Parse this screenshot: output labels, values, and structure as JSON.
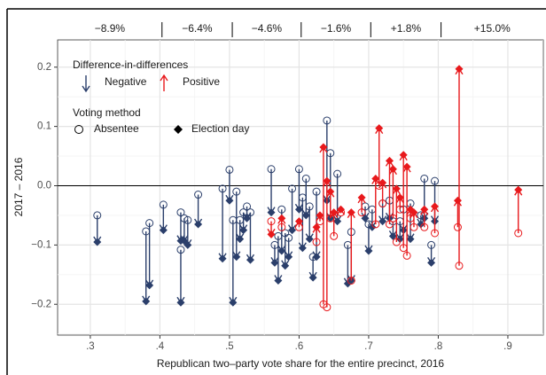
{
  "chart_data": {
    "type": "arrow-scatter",
    "x_label": "Republican two–party vote share for the entire precinct, 2016",
    "y_label": "2017 – 2016",
    "xlim": [
      0.253,
      0.951
    ],
    "ylim": [
      -0.252,
      0.246
    ],
    "xticks": [
      {
        "value": 0.3,
        "label": ".3"
      },
      {
        "value": 0.4,
        "label": ".4"
      },
      {
        "value": 0.5,
        "label": ".5"
      },
      {
        "value": 0.6,
        "label": ".6"
      },
      {
        "value": 0.7,
        "label": ".7"
      },
      {
        "value": 0.8,
        "label": ".8"
      },
      {
        "value": 0.9,
        "label": ".9"
      }
    ],
    "yticks": [
      {
        "value": -0.2,
        "label": "−0.2"
      },
      {
        "value": -0.1,
        "label": "−0.1"
      },
      {
        "value": 0,
        "label": "0.0"
      },
      {
        "value": 0.1,
        "label": "0.1"
      },
      {
        "value": 0.2,
        "label": "0.2"
      }
    ],
    "x_minor_grid": [
      0.25,
      0.35,
      0.45,
      0.55,
      0.65,
      0.75,
      0.85,
      0.95
    ],
    "y_minor_grid": [
      -0.25,
      -0.15,
      -0.05,
      0.05,
      0.15
    ],
    "grid": true,
    "bin_edges": [
      0.403,
      0.504,
      0.603,
      0.703,
      0.804
    ],
    "bin_labels": [
      "−8.9%",
      "−6.4%",
      "−4.6%",
      "−1.6%",
      "+1.8%",
      "+15.0%"
    ],
    "legend": {
      "arrow_title": "Difference-in-differences",
      "method_title": "Voting method",
      "absentee": "Absentee",
      "election_day": "Election day"
    },
    "series": [
      {
        "name": "Negative",
        "color": "#2b3f6b",
        "x": [
          0.31,
          0.38,
          0.385,
          0.405,
          0.43,
          0.43,
          0.435,
          0.44,
          0.455,
          0.49,
          0.5,
          0.505,
          0.51,
          0.515,
          0.52,
          0.525,
          0.53,
          0.56,
          0.565,
          0.57,
          0.575,
          0.58,
          0.585,
          0.59,
          0.6,
          0.605,
          0.61,
          0.615,
          0.62,
          0.625,
          0.64,
          0.645,
          0.655,
          0.67,
          0.675,
          0.695,
          0.7,
          0.705,
          0.72,
          0.73,
          0.735,
          0.745,
          0.75,
          0.76,
          0.775,
          0.78,
          0.79,
          0.795
        ],
        "absentee": [
          -0.05,
          -0.077,
          -0.063,
          -0.032,
          -0.045,
          -0.108,
          -0.055,
          -0.058,
          -0.015,
          -0.005,
          0.027,
          -0.058,
          -0.01,
          -0.058,
          -0.045,
          -0.035,
          -0.045,
          0.028,
          -0.1,
          -0.085,
          -0.04,
          -0.08,
          -0.088,
          -0.005,
          0.028,
          -0.02,
          0.012,
          -0.035,
          -0.12,
          -0.01,
          0.11,
          0.055,
          0.02,
          -0.1,
          -0.078,
          -0.035,
          -0.065,
          -0.04,
          -0.03,
          -0.025,
          -0.06,
          -0.06,
          -0.04,
          -0.03,
          -0.05,
          0.012,
          -0.1,
          0.008
        ],
        "election_day": [
          -0.095,
          -0.195,
          -0.168,
          -0.075,
          -0.093,
          -0.197,
          -0.093,
          -0.1,
          -0.065,
          -0.123,
          -0.025,
          -0.197,
          -0.12,
          -0.09,
          -0.075,
          -0.055,
          -0.125,
          -0.045,
          -0.13,
          -0.16,
          -0.11,
          -0.135,
          -0.12,
          -0.075,
          -0.04,
          -0.105,
          -0.05,
          -0.09,
          -0.155,
          -0.12,
          -0.025,
          -0.055,
          -0.06,
          -0.165,
          -0.16,
          -0.055,
          -0.11,
          -0.07,
          -0.06,
          -0.055,
          -0.085,
          -0.09,
          -0.075,
          -0.09,
          -0.065,
          -0.055,
          -0.13,
          -0.06
        ]
      },
      {
        "name": "Positive",
        "color": "#e8191c",
        "x": [
          0.56,
          0.575,
          0.6,
          0.625,
          0.63,
          0.635,
          0.64,
          0.645,
          0.65,
          0.66,
          0.675,
          0.69,
          0.71,
          0.715,
          0.72,
          0.73,
          0.735,
          0.74,
          0.745,
          0.75,
          0.755,
          0.76,
          0.765,
          0.78,
          0.795,
          0.83,
          0.828,
          0.915
        ],
        "absentee": [
          -0.06,
          -0.07,
          -0.07,
          -0.095,
          -0.06,
          -0.2,
          -0.205,
          -0.055,
          -0.085,
          -0.045,
          -0.16,
          -0.045,
          -0.065,
          0,
          -0.03,
          -0.065,
          -0.055,
          -0.095,
          -0.04,
          -0.105,
          -0.118,
          -0.055,
          -0.07,
          -0.07,
          -0.08,
          -0.135,
          -0.07,
          -0.08
        ],
        "election_day": [
          -0.082,
          -0.055,
          -0.06,
          -0.07,
          -0.05,
          0.065,
          0.008,
          -0.01,
          -0.045,
          -0.04,
          -0.045,
          -0.02,
          0.012,
          0.097,
          0.005,
          0.042,
          0.028,
          -0.005,
          -0.02,
          0.052,
          0.032,
          -0.04,
          -0.045,
          -0.04,
          -0.035,
          0.197,
          -0.025,
          -0.007
        ]
      }
    ]
  }
}
